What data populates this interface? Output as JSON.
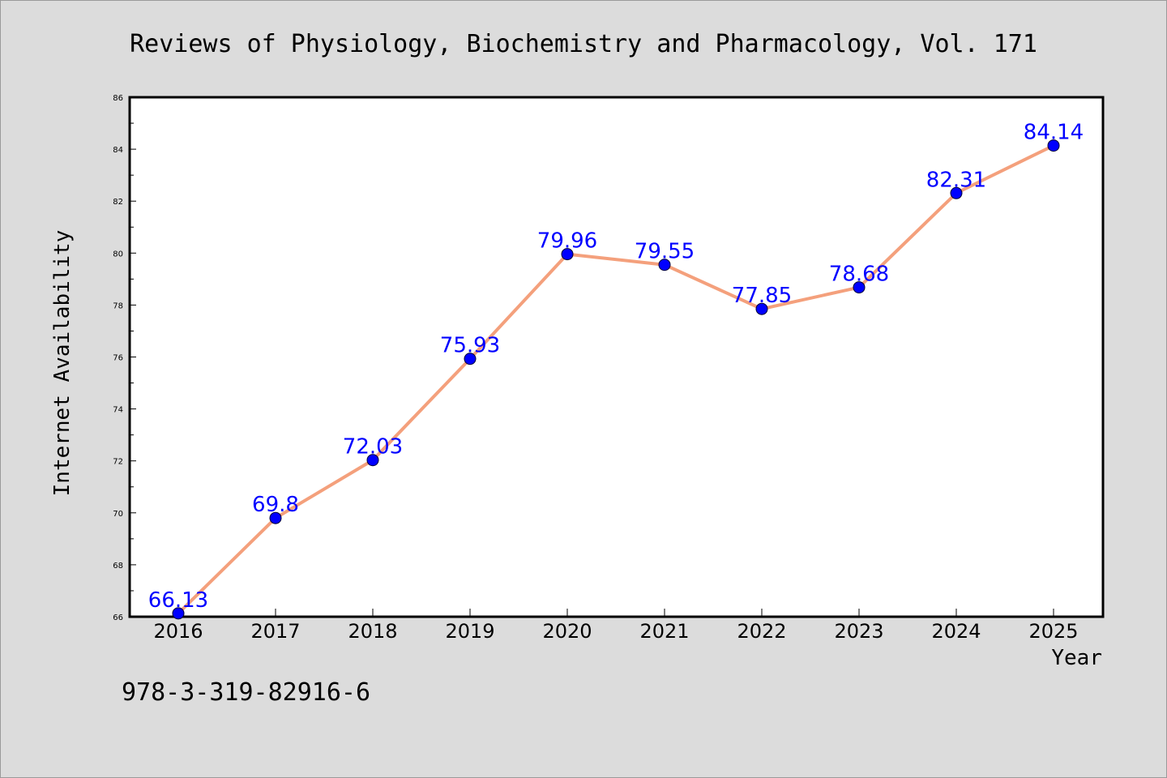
{
  "chart_data": {
    "type": "line",
    "title": "Reviews of Physiology, Biochemistry and Pharmacology, Vol. 171",
    "xlabel": "Year",
    "ylabel": "Internet Availability",
    "categories": [
      "2016",
      "2017",
      "2018",
      "2019",
      "2020",
      "2021",
      "2022",
      "2023",
      "2024",
      "2025"
    ],
    "series": [
      {
        "values": [
          66.13,
          69.8,
          72.03,
          75.93,
          79.96,
          79.55,
          77.85,
          78.68,
          82.31,
          84.14
        ],
        "labels": [
          "66.13",
          "69.8",
          "72.03",
          "75.93",
          "79.96",
          "79.55",
          "77.85",
          "78.68",
          "82.31",
          "84.14"
        ],
        "line_color": "#f4a07c",
        "marker_color": "#0000ff",
        "label_color": "#0000ff"
      }
    ],
    "ylim": [
      66,
      86
    ],
    "yticks": [
      66,
      68,
      70,
      72,
      74,
      76,
      78,
      80,
      82,
      84,
      86
    ],
    "grid": false,
    "legend": "none"
  },
  "footnote": "978-3-319-82916-6"
}
